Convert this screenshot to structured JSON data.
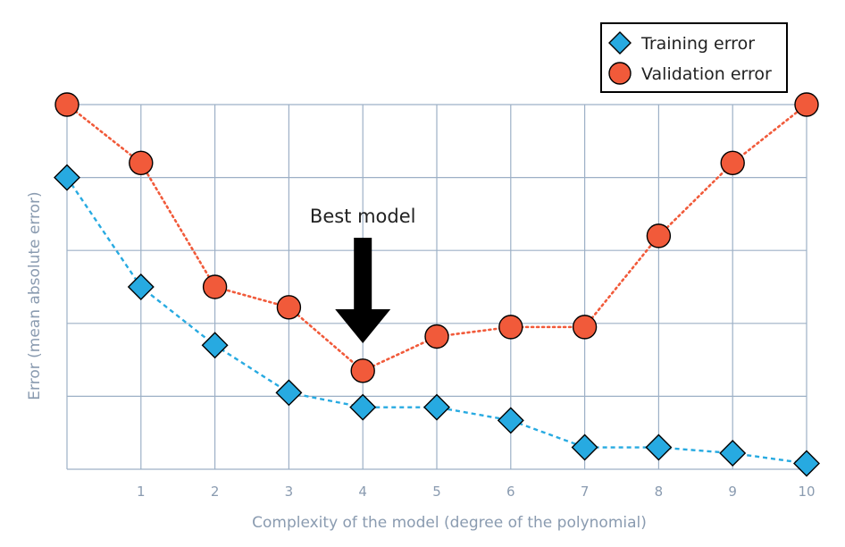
{
  "chart_data": {
    "type": "line",
    "title": "",
    "xlabel": "Complexity of the model (degree of the polynomial)",
    "ylabel": "Error (mean absolute error)",
    "x": [
      0,
      1,
      2,
      3,
      4,
      5,
      6,
      7,
      8,
      9,
      10
    ],
    "x_tick_labels": [
      "1",
      "2",
      "3",
      "4",
      "5",
      "6",
      "7",
      "8",
      "9",
      "10"
    ],
    "xlim": [
      0,
      10
    ],
    "ylim": [
      0,
      5
    ],
    "grid": true,
    "legend_position": "top-right",
    "series": [
      {
        "name": "Training error",
        "marker": "diamond",
        "color": "#27aae1",
        "line_style": "dashed",
        "values": [
          4.0,
          2.5,
          1.7,
          1.05,
          0.85,
          0.85,
          0.67,
          0.3,
          0.3,
          0.22,
          0.08
        ]
      },
      {
        "name": "Validation error",
        "marker": "circle",
        "color": "#f15a3a",
        "line_style": "dotted",
        "values": [
          5.0,
          4.2,
          2.5,
          2.22,
          1.35,
          1.82,
          1.95,
          1.95,
          3.2,
          4.2,
          5.0
        ]
      }
    ],
    "annotations": [
      {
        "text": "Best model",
        "x": 4,
        "arrow": "down"
      }
    ]
  }
}
